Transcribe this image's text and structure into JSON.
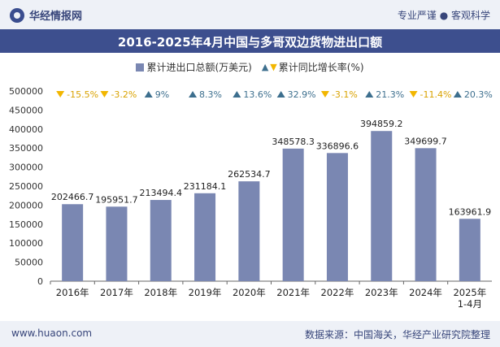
{
  "header": {
    "brand": "华经情报网",
    "tagline": "专业严谨 ● 客观科学"
  },
  "footer": {
    "website": "www.huaon.com",
    "source": "数据来源：中国海关，华经产业研究院整理"
  },
  "colors": {
    "bar": "#7a87b2",
    "up": "#3d6f8e",
    "down": "#f2b600",
    "title_bg": "#3d4f8e"
  },
  "chart_data": {
    "type": "bar",
    "title": "2016-2025年4月中国与多哥双边货物进出口额",
    "categories": [
      "2016年",
      "2017年",
      "2018年",
      "2019年",
      "2020年",
      "2021年",
      "2022年",
      "2023年",
      "2024年",
      "2025年\n1-4月"
    ],
    "series": [
      {
        "name": "累计进出口总额(万美元)",
        "values": [
          202466.7,
          195951.7,
          213494.4,
          231184.1,
          262534.7,
          348578.3,
          336896.6,
          394859.2,
          349699.7,
          163961.9
        ],
        "labels": [
          "202466.7",
          "195951.7",
          "213494.4",
          "231184.1",
          "262534.7",
          "348578.3",
          "336896.6",
          "394859.2",
          "349699.7",
          "163961.9"
        ]
      },
      {
        "name": "累计同比增长率(%)",
        "values": [
          -15.5,
          -3.2,
          9,
          8.3,
          13.6,
          32.9,
          -3.1,
          21.3,
          -11.4,
          20.3
        ],
        "labels": [
          "-15.5%",
          "-3.2%",
          "9%",
          "8.3%",
          "13.6%",
          "32.9%",
          "-3.1%",
          "21.3%",
          "-11.4%",
          "20.3%"
        ]
      }
    ],
    "y_ticks": [
      "0",
      "50000",
      "100000",
      "150000",
      "200000",
      "250000",
      "300000",
      "350000",
      "400000",
      "450000",
      "500000"
    ],
    "ylim": [
      0,
      500000
    ],
    "legend_position": "top"
  }
}
